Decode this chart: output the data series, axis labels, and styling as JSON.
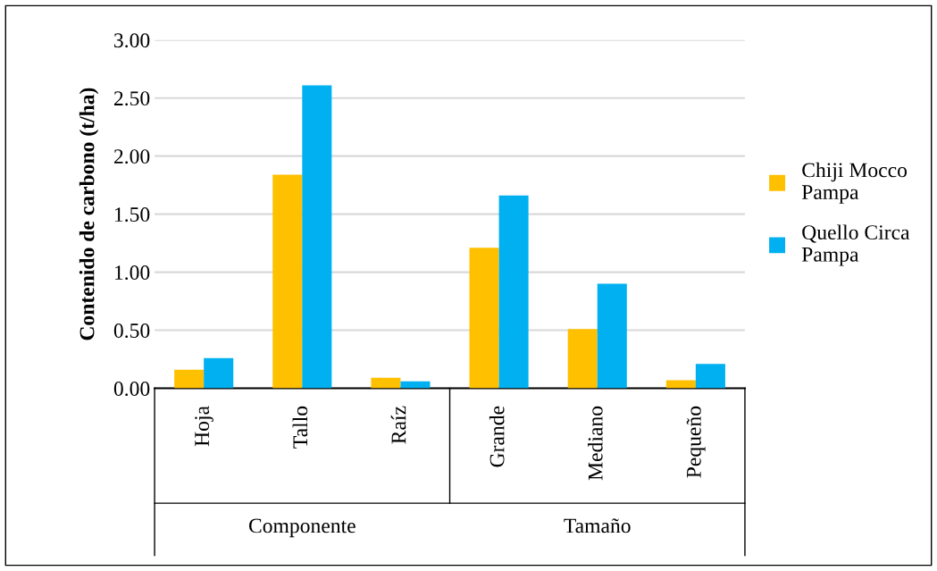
{
  "chart_data": {
    "type": "bar",
    "ylabel": "Contenido de carbono (t/ha)",
    "categories": [
      "Hoja",
      "Tallo",
      "Raíz",
      "Grande",
      "Mediano",
      "Pequeño"
    ],
    "series": [
      {
        "name": "Chiji Mocco Pampa",
        "color": "#ffc000",
        "values": [
          0.16,
          1.84,
          0.09,
          1.21,
          0.51,
          0.07
        ]
      },
      {
        "name": "Quello Circa Pampa",
        "color": "#00b0f0",
        "values": [
          0.26,
          2.61,
          0.06,
          1.66,
          0.9,
          0.21
        ]
      }
    ],
    "ylim": [
      0,
      3
    ],
    "yticks": [
      {
        "value": 0,
        "label": "0.00"
      },
      {
        "value": 0.5,
        "label": "0.50"
      },
      {
        "value": 1,
        "label": "1.00"
      },
      {
        "value": 1.5,
        "label": "1.50"
      },
      {
        "value": 2,
        "label": "2.00"
      },
      {
        "value": 2.5,
        "label": "2.50"
      },
      {
        "value": 3,
        "label": "3.00"
      }
    ],
    "grid": "y",
    "legend": "right",
    "annotations": [
      "Componente",
      "Tamaño"
    ]
  }
}
